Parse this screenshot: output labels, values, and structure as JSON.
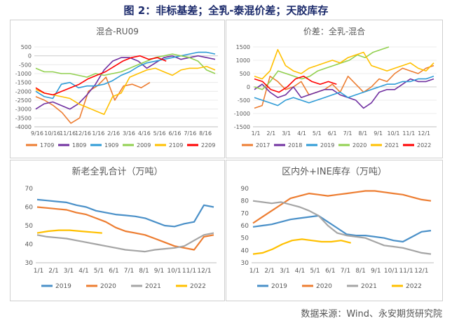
{
  "figure_title": "图 2：非标基差；全乳-泰混价差；天胶库存",
  "source_note": "数据来源：Wind、永安期货研究院",
  "colors": {
    "orange": "#ed7d31",
    "purple": "#7030a0",
    "blue": "#2e9bd6",
    "green": "#92d050",
    "yellow": "#ffc000",
    "red": "#ff0000",
    "gray": "#a5a5a5",
    "blue2": "#4a90c8"
  },
  "chart_data": [
    {
      "type": "line",
      "title": "混合-RU09",
      "y_ticks": [
        500,
        0,
        -500,
        -1000,
        -1500,
        -2000,
        -2500,
        -3000,
        -3500,
        -4000
      ],
      "ylim": [
        -4000,
        500
      ],
      "x_ticks": [
        "9/16",
        "10/16",
        "11/16",
        "12/16",
        "1/16",
        "2/16",
        "3/16",
        "4/16",
        "5/16",
        "6/16",
        "7/16",
        "8/16"
      ],
      "grid": true,
      "legend_position": "bottom",
      "series": [
        {
          "name": "1709",
          "color": "#ed7d31",
          "values": [
            -2300,
            -2500,
            -2800,
            -3200,
            -3800,
            -3500,
            -2000,
            -1700,
            -1200,
            -2500,
            -1700,
            -1600,
            -1800,
            -1500
          ]
        },
        {
          "name": "1809",
          "color": "#7030a0",
          "values": [
            -3000,
            -2700,
            -2600,
            -2800,
            -3000,
            -2700,
            -2200,
            -1600,
            -800,
            -300,
            -100,
            -100,
            -300,
            -700,
            -400,
            -100,
            0,
            -200,
            -100,
            0,
            -100,
            -200
          ]
        },
        {
          "name": "1909",
          "color": "#2e9bd6",
          "values": [
            -2000,
            -2300,
            -2400,
            -1600,
            -1500,
            -1800,
            -1700,
            -1700,
            -1600,
            -1400,
            -1100,
            -900,
            -600,
            -400,
            -300,
            -200,
            -100,
            0,
            100,
            200,
            200,
            100
          ]
        },
        {
          "name": "2009",
          "color": "#92d050",
          "values": [
            -700,
            -900,
            -900,
            -1000,
            -1000,
            -1100,
            -1200,
            -1000,
            -1100,
            -1000,
            -900,
            -700,
            -500,
            -300,
            -100,
            0,
            100,
            0,
            -100,
            -300,
            -800,
            -1000
          ]
        },
        {
          "name": "2109",
          "color": "#ffc000",
          "values": [
            -1900,
            -2100,
            -2200,
            -2300,
            -2400,
            -2700,
            -2900,
            -3100,
            -3300,
            -2300,
            -2100,
            -1200,
            -1000,
            -800,
            -700,
            -900,
            -1100,
            -800,
            -700,
            -700,
            -600,
            -800
          ]
        },
        {
          "name": "2209",
          "color": "#ff0000",
          "values": [
            -1800,
            -2100,
            -2200,
            -2000,
            -1800,
            -1600,
            -1300,
            -1100,
            -900,
            -600,
            -300,
            -100,
            0,
            -200,
            -100,
            -300
          ]
        }
      ]
    },
    {
      "type": "line",
      "title": "价差：全乳-混合",
      "y_ticks": [
        1500,
        1000,
        500,
        0,
        -500,
        -1000,
        -1500
      ],
      "ylim": [
        -1500,
        1500
      ],
      "x_ticks": [
        "1/1",
        "2/1",
        "3/1",
        "4/1",
        "5/1",
        "6/1",
        "7/1",
        "8/1",
        "9/1",
        "10/1",
        "11/1",
        "12/1"
      ],
      "grid": true,
      "legend_position": "bottom",
      "series": [
        {
          "name": "2017",
          "color": "#ed7d31",
          "values": [
            -800,
            -700,
            400,
            200,
            -100,
            0,
            200,
            -300,
            -200,
            -100,
            100,
            -200,
            400,
            100,
            -200,
            0,
            300,
            200,
            500,
            700,
            600,
            500,
            700,
            800
          ]
        },
        {
          "name": "2018",
          "color": "#7030a0",
          "values": [
            -100,
            100,
            -200,
            -400,
            -300,
            0,
            -400,
            -300,
            -200,
            -100,
            -100,
            -300,
            -400,
            -500,
            -800,
            -600,
            -200,
            -100,
            -100,
            100,
            300,
            200,
            200,
            300
          ]
        },
        {
          "name": "2019",
          "color": "#2e9bd6",
          "values": [
            -400,
            -500,
            -600,
            -700,
            -500,
            -400,
            -500,
            -600,
            -500,
            -400,
            -300,
            -200,
            -400,
            -300,
            -200,
            -100,
            0,
            100,
            100,
            200,
            200,
            300,
            300,
            400
          ]
        },
        {
          "name": "2020",
          "color": "#92d050",
          "values": [
            0,
            -100,
            200,
            600,
            500,
            400,
            300,
            400,
            600,
            700,
            800,
            900,
            1000,
            1200,
            1100,
            1300,
            1400,
            1500
          ]
        },
        {
          "name": "2021",
          "color": "#ffc000",
          "values": [
            400,
            300,
            600,
            1400,
            800,
            600,
            500,
            700,
            800,
            900,
            1000,
            900,
            1100,
            1200,
            1300,
            800,
            700,
            600,
            700,
            800,
            900,
            700,
            600,
            900
          ]
        },
        {
          "name": "2022",
          "color": "#ff0000",
          "values": [
            300,
            200,
            -100,
            -200,
            0,
            300,
            400,
            200,
            100,
            200,
            100
          ]
        }
      ]
    },
    {
      "type": "line",
      "title": "新老全乳合计（万吨）",
      "y_ticks": [
        70,
        60,
        50,
        40,
        30
      ],
      "ylim": [
        30,
        70
      ],
      "x_ticks": [
        "1/1",
        "2/1",
        "3/1",
        "4/1",
        "5/1",
        "6/1",
        "7/1",
        "8/1",
        "9/1",
        "10/1",
        "11/1",
        "12/1"
      ],
      "grid": false,
      "legend_position": "bottom",
      "series": [
        {
          "name": "2019",
          "color": "#4a90c8",
          "values": [
            64,
            63.5,
            63,
            62.5,
            61,
            60,
            58,
            57,
            56,
            55.5,
            55,
            54,
            52,
            50,
            49.5,
            51,
            52,
            61,
            60
          ]
        },
        {
          "name": "2020",
          "color": "#ed7d31",
          "values": [
            60,
            59.5,
            59,
            58.5,
            57,
            56,
            54,
            52,
            49,
            47,
            46,
            45,
            43,
            41,
            39,
            38,
            37,
            44,
            45
          ]
        },
        {
          "name": "2021",
          "color": "#a5a5a5",
          "values": [
            45,
            44,
            43.5,
            43,
            42,
            41,
            40,
            39,
            38,
            37,
            36.5,
            36,
            37,
            37.5,
            38,
            39,
            42,
            45,
            46
          ]
        },
        {
          "name": "2022",
          "color": "#ffc000",
          "values": [
            46,
            47,
            47.5,
            47.5,
            47,
            46.5,
            46
          ]
        }
      ]
    },
    {
      "type": "line",
      "title": "区内外+INE库存（万吨）",
      "y_ticks": [
        90,
        80,
        70,
        60,
        50,
        40,
        30
      ],
      "ylim": [
        30,
        90
      ],
      "x_ticks": [
        "1/1",
        "2/1",
        "3/1",
        "4/1",
        "5/1",
        "6/1",
        "7/1",
        "8/1",
        "9/1",
        "10/1",
        "11/1",
        "12/1"
      ],
      "grid": false,
      "legend_position": "bottom",
      "series": [
        {
          "name": "2019",
          "color": "#4a90c8",
          "values": [
            59,
            60,
            61,
            63,
            65,
            66,
            67,
            68,
            63,
            58,
            53,
            52,
            52,
            51,
            50,
            48,
            47,
            51,
            55,
            56
          ]
        },
        {
          "name": "2020",
          "color": "#ed7d31",
          "values": [
            62,
            67,
            72,
            77,
            82,
            84,
            86,
            85,
            84,
            85,
            86,
            87,
            88,
            88,
            87,
            86,
            85,
            83,
            81,
            80
          ]
        },
        {
          "name": "2021",
          "color": "#a5a5a5",
          "values": [
            80,
            79,
            78,
            79,
            77,
            75,
            72,
            68,
            60,
            54,
            52,
            51,
            50,
            47,
            44,
            43,
            42,
            40,
            38,
            37
          ]
        },
        {
          "name": "2022",
          "color": "#ffc000",
          "values": [
            37,
            38,
            41,
            45,
            48,
            49,
            48,
            47,
            47,
            48,
            46
          ]
        }
      ]
    }
  ]
}
